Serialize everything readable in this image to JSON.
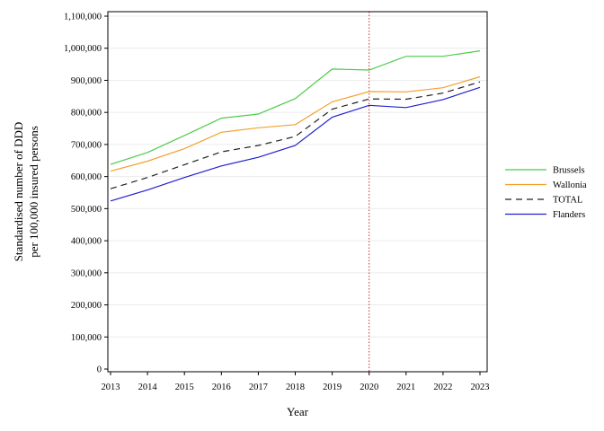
{
  "chart_data": {
    "type": "line",
    "xlabel": "Year",
    "ylabel_lines": [
      "Standardised number of DDD",
      "per 100,000 insured persons"
    ],
    "x": [
      "2013",
      "2014",
      "2015",
      "2016",
      "2017",
      "2018",
      "2019",
      "2020",
      "2021",
      "2022",
      "2023"
    ],
    "yticks": [
      "0",
      "100,000",
      "200,000",
      "300,000",
      "400,000",
      "500,000",
      "600,000",
      "700,000",
      "800,000",
      "900,000",
      "1,000,000",
      "1,100,000"
    ],
    "ylim": [
      0,
      1100000
    ],
    "grid": "horizontal",
    "reference_line_x": "2020",
    "legend_position": "right",
    "series": [
      {
        "name": "Brussels",
        "color": "#4ccb4c",
        "dash": "solid",
        "values": [
          638000,
          675000,
          728000,
          782000,
          795000,
          843000,
          935000,
          932000,
          975000,
          975000,
          992000
        ]
      },
      {
        "name": "Wallonia",
        "color": "#f5a030",
        "dash": "solid",
        "values": [
          617000,
          648000,
          687000,
          738000,
          752000,
          762000,
          833000,
          865000,
          864000,
          877000,
          911000
        ]
      },
      {
        "name": "TOTAL",
        "color": "#222222",
        "dash": "dashed",
        "values": [
          562000,
          597000,
          637000,
          677000,
          697000,
          725000,
          810000,
          842000,
          841000,
          860000,
          895000
        ]
      },
      {
        "name": "Flanders",
        "color": "#2020d0",
        "dash": "solid",
        "values": [
          524000,
          558000,
          597000,
          633000,
          660000,
          697000,
          785000,
          822000,
          815000,
          840000,
          878000
        ]
      }
    ]
  }
}
